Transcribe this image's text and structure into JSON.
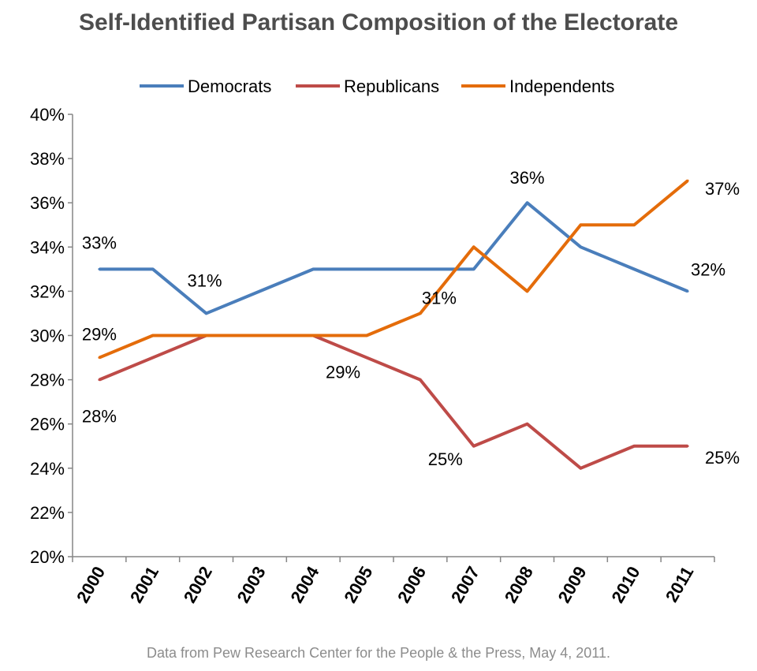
{
  "chart_data": {
    "type": "line",
    "title": "Self-Identified Partisan Composition of the Electorate",
    "source": "Data from Pew Research Center for the People & the Press, May 4, 2011.",
    "categories": [
      "2000",
      "2001",
      "2002",
      "2003",
      "2004",
      "2005",
      "2006",
      "2007",
      "2008",
      "2009",
      "2010",
      "2011"
    ],
    "ylim": [
      20,
      40
    ],
    "yticks": [
      "20%",
      "22%",
      "24%",
      "26%",
      "28%",
      "30%",
      "32%",
      "34%",
      "36%",
      "38%",
      "40%"
    ],
    "grid": false,
    "legend_position": "top",
    "series": [
      {
        "name": "Democrats",
        "color": "#4a7ebb",
        "values": [
          33,
          33,
          31,
          32,
          33,
          33,
          33,
          33,
          36,
          34,
          33,
          32
        ]
      },
      {
        "name": "Republicans",
        "color": "#be4b48",
        "values": [
          28,
          29,
          30,
          30,
          30,
          29,
          28,
          25,
          26,
          24,
          25,
          25
        ]
      },
      {
        "name": "Independents",
        "color": "#e46c0a",
        "values": [
          29,
          30,
          30,
          30,
          30,
          30,
          31,
          34,
          32,
          35,
          35,
          37
        ]
      }
    ],
    "data_labels": [
      {
        "series": 0,
        "index": 0,
        "text": "33%"
      },
      {
        "series": 0,
        "index": 2,
        "text": "31%"
      },
      {
        "series": 2,
        "index": 0,
        "text": "29%"
      },
      {
        "series": 1,
        "index": 0,
        "text": "28%"
      },
      {
        "series": 1,
        "index": 5,
        "text": "29%"
      },
      {
        "series": 1,
        "index": 7,
        "text": "25%"
      },
      {
        "series": 2,
        "index": 6,
        "text": "31%"
      },
      {
        "series": 0,
        "index": 8,
        "text": "36%"
      },
      {
        "series": 2,
        "index": 11,
        "text": "37%"
      },
      {
        "series": 0,
        "index": 11,
        "text": "32%"
      },
      {
        "series": 1,
        "index": 11,
        "text": "25%"
      }
    ]
  }
}
